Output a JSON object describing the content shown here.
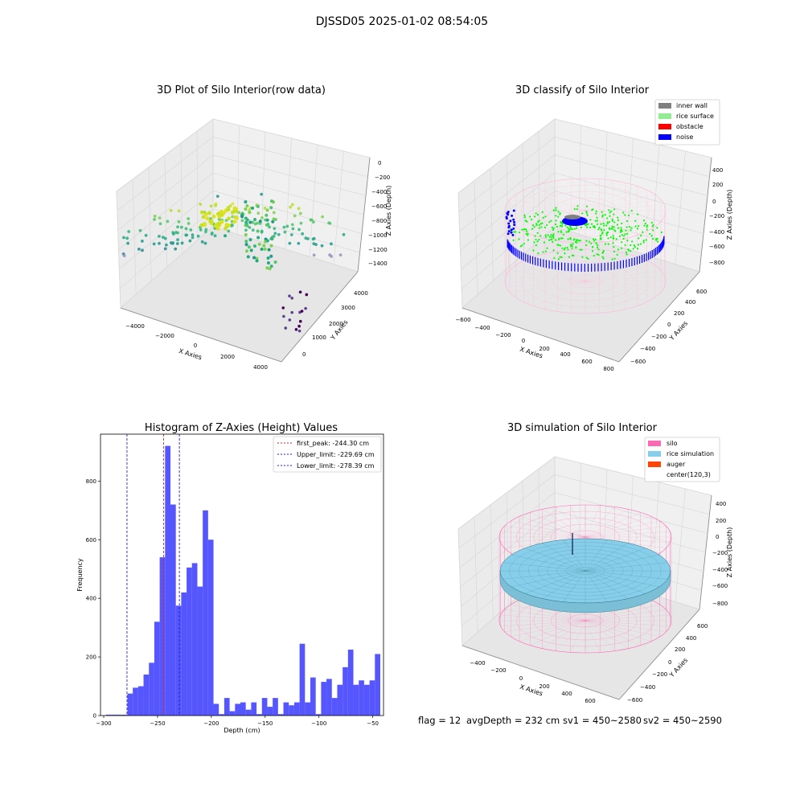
{
  "figure": {
    "title": "DJSSD05 2025-01-02 08:54:05",
    "footer": {
      "flag": "flag = 12",
      "avg_depth": "avgDepth = 232 cm",
      "sv1": "sv1 = 450~2580",
      "sv2": "sv2 = 450~2590"
    }
  },
  "colors": {
    "hist_bar": "#4d4dff",
    "first_peak": "#d62728",
    "limit": "#1f1fd6",
    "inner_wall": "#808080",
    "rice_surface": "#90ee90",
    "obstacle": "#ff0000",
    "noise": "#0000ff",
    "silo": "#ff69b4",
    "rice_simulation": "#87ceeb",
    "auger": "#ff4500"
  },
  "chart_data": [
    {
      "type": "scatter3d",
      "title": "3D Plot of Silo Interior(row data)",
      "xlabel": "X Axies",
      "ylabel": "Y Axies",
      "zlabel": "Z Axies (Depth)",
      "x_ticks": [
        "−4000",
        "−2000",
        "0",
        "2000",
        "4000"
      ],
      "y_ticks": [
        "0",
        "1000",
        "2000",
        "3000",
        "4000"
      ],
      "z_ticks": [
        "0",
        "−200",
        "−400",
        "−600",
        "−800",
        "−1000",
        "−1200",
        "−1400"
      ],
      "grid": true
    },
    {
      "type": "scatter3d",
      "title": "3D classify of Silo Interior",
      "xlabel": "X Axies",
      "ylabel": "Y Axies",
      "zlabel": "Z Axies (Depth)",
      "x_ticks": [
        "−600",
        "−400",
        "−200",
        "0",
        "200",
        "400",
        "600",
        "800"
      ],
      "y_ticks": [
        "−600",
        "−400",
        "−200",
        "0",
        "200",
        "400",
        "600"
      ],
      "z_ticks": [
        "400",
        "200",
        "0",
        "−200",
        "−400",
        "−600",
        "−800"
      ],
      "legend": [
        "inner wall",
        "rice surface",
        "obstacle",
        "noise"
      ],
      "legend_position": "top-right",
      "grid": true
    },
    {
      "type": "bar",
      "title": "Histogram of Z-Axies (Height) Values",
      "xlabel": "Depth (cm)",
      "ylabel": "Frequency",
      "xlim": [
        -303,
        -40
      ],
      "ylim": [
        0,
        960
      ],
      "x_ticks": [
        -300,
        -250,
        -200,
        -150,
        -100,
        -50
      ],
      "x_tick_labels": [
        "−300",
        "−250",
        "−200",
        "−150",
        "−100",
        "−50"
      ],
      "y_ticks": [
        0,
        200,
        400,
        600,
        800
      ],
      "bin_start": -298,
      "bin_width": 5,
      "values": [
        3,
        3,
        3,
        3,
        75,
        95,
        100,
        140,
        180,
        320,
        540,
        920,
        720,
        375,
        420,
        505,
        520,
        440,
        700,
        600,
        40,
        5,
        60,
        15,
        40,
        45,
        20,
        45,
        5,
        60,
        30,
        60,
        5,
        45,
        35,
        45,
        245,
        45,
        130,
        5,
        115,
        125,
        60,
        105,
        165,
        225,
        105,
        120,
        105,
        120,
        210
      ],
      "lines": [
        {
          "name": "first_peak: -244.30 cm",
          "x": -244.3,
          "color": "#d62728"
        },
        {
          "name": "Upper_limit: -229.69 cm",
          "x": -229.69,
          "color": "#1f1fd6"
        },
        {
          "name": "Lower_limit: -278.39 cm",
          "x": -278.39,
          "color": "#1f1fd6"
        }
      ],
      "legend_position": "top-right",
      "grid": false
    },
    {
      "type": "surface3d",
      "title": "3D simulation of Silo Interior",
      "xlabel": "X Axies",
      "ylabel": "Y Axies",
      "zlabel": "Z Axies (Depth)",
      "x_ticks": [
        "−400",
        "−200",
        "0",
        "200",
        "400",
        "600"
      ],
      "y_ticks": [
        "−600",
        "−400",
        "−200",
        "0",
        "200",
        "400",
        "600"
      ],
      "z_ticks": [
        "400",
        "200",
        "0",
        "−200",
        "−400",
        "−600",
        "−800"
      ],
      "legend": [
        "silo",
        "rice simulation",
        "auger",
        "center(120,3)"
      ],
      "legend_position": "top-right",
      "grid": true
    }
  ]
}
